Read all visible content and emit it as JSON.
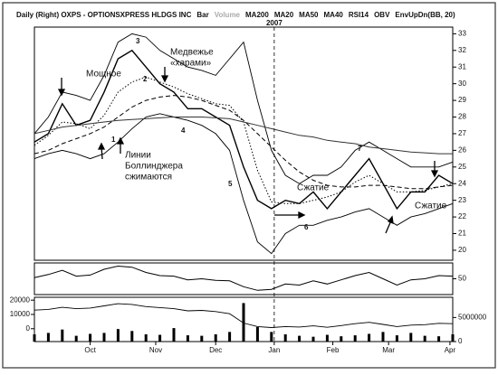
{
  "chart_data": [
    {
      "type": "line",
      "title": "Daily (Right) OXPS - OPTIONSXPRESS HLDGS INC",
      "indicators": [
        "Bar",
        "Volume",
        "MA200",
        "MA20",
        "MA50",
        "MA40",
        "RSI14",
        "OBV",
        "EnvUpDn(BB, 20)"
      ],
      "year_label": "2007",
      "year_x": 86,
      "x": [
        0,
        5,
        10,
        15,
        20,
        25,
        30,
        35,
        40,
        45,
        50,
        55,
        60,
        65,
        70,
        75,
        80,
        85,
        90,
        95,
        100,
        105,
        110,
        115,
        120,
        125,
        130,
        135,
        140,
        145,
        150
      ],
      "xlim": [
        0,
        150
      ],
      "ylim": [
        19.4,
        33.4
      ],
      "yticks": [
        20,
        21,
        22,
        23,
        24,
        25,
        26,
        27,
        28,
        29,
        30,
        31,
        32,
        33
      ],
      "series": [
        {
          "color": "#000000",
          "style": "solid",
          "width": 1.4,
          "values": [
            26.5,
            27,
            28.8,
            27.5,
            27.8,
            29.5,
            31.5,
            32,
            31,
            30,
            29.5,
            28.5,
            28.5,
            28,
            27.5,
            25,
            23,
            22.5,
            23,
            22.8,
            23.5,
            22.5,
            23.5,
            24.5,
            25.5,
            24,
            22.5,
            23.5,
            23.5,
            24.5,
            24
          ]
        },
        {
          "color": "#000000",
          "style": "solid",
          "width": 0.9,
          "values": [
            27,
            28,
            29.5,
            29.3,
            29,
            30.5,
            32.5,
            33,
            32.8,
            32,
            31.5,
            31,
            30.8,
            30.5,
            31.5,
            32.5,
            29,
            26,
            24.5,
            24,
            24.5,
            24.5,
            25,
            26,
            26.5,
            26,
            25.5,
            25,
            25,
            25,
            25.3
          ]
        },
        {
          "color": "#000000",
          "style": "solid",
          "width": 0.9,
          "values": [
            25.5,
            25.8,
            26,
            25.8,
            25.5,
            25.8,
            26.5,
            27.3,
            28,
            28.2,
            28,
            27.8,
            27.5,
            27,
            26,
            23,
            20.5,
            19.8,
            21,
            21.5,
            21.5,
            21.8,
            22,
            22.3,
            22.5,
            22,
            21.5,
            22,
            22.2,
            22.5,
            22.8
          ]
        },
        {
          "color": "#000000",
          "style": "dotted",
          "width": 1,
          "values": [
            26.3,
            26.9,
            27.7,
            27.6,
            27.3,
            28.1,
            29.5,
            30.1,
            30.4,
            30.1,
            29.8,
            29.4,
            29.1,
            28.8,
            28.7,
            27.7,
            24.8,
            22.9,
            22.8,
            22.8,
            23,
            23.2,
            23.5,
            24.1,
            24.5,
            24,
            23.5,
            23.5,
            23.6,
            23.8,
            24
          ]
        },
        {
          "color": "#000000",
          "style": "dashed",
          "width": 1,
          "values": [
            25.8,
            26,
            26.4,
            26.7,
            27,
            27.4,
            28,
            28.6,
            29,
            29.2,
            29.3,
            29.2,
            29,
            28.7,
            28.4,
            27.8,
            27,
            26.2,
            25.4,
            24.7,
            24.2,
            23.9,
            23.8,
            23.8,
            23.9,
            23.9,
            23.8,
            23.7,
            23.7,
            23.8,
            23.9
          ]
        },
        {
          "color": "#333333",
          "style": "solid",
          "width": 1,
          "values": [
            27,
            27.2,
            27.4,
            27.5,
            27.6,
            27.7,
            27.8,
            27.85,
            27.9,
            27.95,
            28,
            28,
            28,
            27.95,
            27.9,
            27.7,
            27.5,
            27.3,
            27.1,
            26.9,
            26.8,
            26.6,
            26.5,
            26.4,
            26.2,
            26.1,
            26,
            25.9,
            25.85,
            25.8,
            25.8
          ]
        }
      ],
      "annotations": [
        [
          "Мощное"
        ],
        [
          "Медвежье",
          "«харами»"
        ],
        [
          "Линии",
          "Боллинджера",
          "сжимаются"
        ],
        [
          "Сжатие"
        ],
        [
          "Сжатие"
        ],
        [
          "1"
        ],
        [
          "2"
        ],
        [
          "3"
        ],
        [
          "4"
        ],
        [
          "5"
        ],
        [
          "6"
        ],
        [
          "7"
        ]
      ]
    },
    {
      "type": "line",
      "x": [
        0,
        5,
        10,
        15,
        20,
        25,
        30,
        35,
        40,
        45,
        50,
        55,
        60,
        65,
        70,
        75,
        80,
        85,
        90,
        95,
        100,
        105,
        110,
        115,
        120,
        125,
        130,
        135,
        140,
        145,
        150
      ],
      "xlim": [
        0,
        150
      ],
      "ylim": [
        20,
        80
      ],
      "yticks": [
        50
      ],
      "series": [
        {
          "color": "#000000",
          "style": "solid",
          "width": 1,
          "values": [
            52,
            58,
            66,
            55,
            57,
            68,
            74,
            72,
            62,
            56,
            55,
            48,
            50,
            47,
            46,
            35,
            28,
            30,
            40,
            38,
            46,
            40,
            48,
            56,
            62,
            50,
            38,
            48,
            50,
            56,
            55
          ]
        }
      ]
    },
    {
      "type": "bar",
      "x": [
        0,
        5,
        10,
        15,
        20,
        25,
        30,
        35,
        40,
        45,
        50,
        55,
        60,
        65,
        70,
        75,
        80,
        85,
        90,
        95,
        100,
        105,
        110,
        115,
        120,
        125,
        130,
        135,
        140,
        145,
        150
      ],
      "xlim": [
        0,
        150
      ],
      "ylim": [
        0,
        9200000
      ],
      "yticks": [
        0,
        5000000
      ],
      "color": "#000000",
      "values": [
        1500000,
        1800000,
        2500000,
        1200000,
        1600000,
        1800000,
        2600000,
        2200000,
        1500000,
        1400000,
        2800000,
        1300000,
        1200000,
        1500000,
        2000000,
        8000000,
        3000000,
        2000000,
        1500000,
        1200000,
        1000000,
        1400000,
        1100000,
        1300000,
        1600000,
        2000000,
        1300000,
        1800000,
        1200000,
        1100000,
        1500000
      ],
      "y2lim": [
        -9000,
        22000
      ],
      "y2ticks": [
        0,
        10000,
        20000
      ],
      "line": {
        "color": "#000000",
        "values": [
          13000,
          13500,
          15000,
          14000,
          14500,
          16000,
          17500,
          17000,
          15500,
          14800,
          14000,
          12500,
          12800,
          12000,
          10500,
          4000,
          1500,
          800,
          1500,
          1200,
          2000,
          1000,
          2200,
          3500,
          4500,
          3000,
          1500,
          2500,
          2800,
          3800,
          3500
        ]
      },
      "xticks": [
        {
          "value": 20,
          "label": "Oct"
        },
        {
          "value": 43.5,
          "label": "Nov"
        },
        {
          "value": 65,
          "label": "Dec"
        },
        {
          "value": 86,
          "label": "Jan"
        },
        {
          "value": 107,
          "label": "Feb"
        },
        {
          "value": 127,
          "label": "Mar"
        },
        {
          "value": 149,
          "label": "Apr"
        }
      ]
    }
  ]
}
